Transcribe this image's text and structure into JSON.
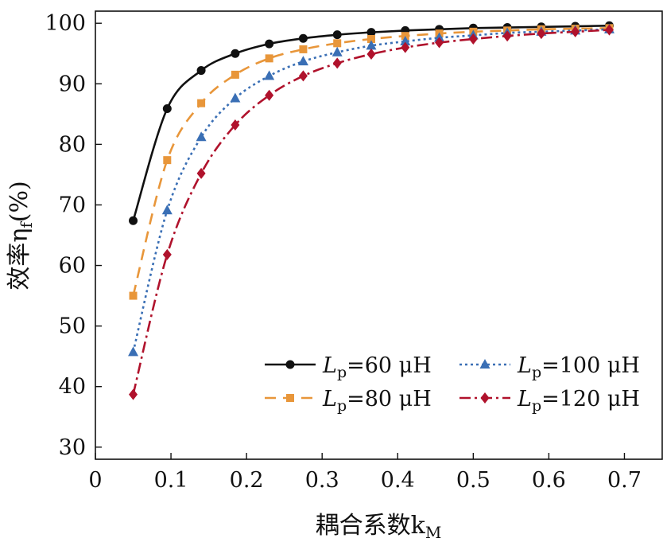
{
  "chart_data": {
    "type": "line",
    "xlabel": "耦合系数k",
    "xlabel_sub": "M",
    "ylabel": "效率η",
    "ylabel_sub": "f",
    "ylabel_suffix": "(%)",
    "xlim": [
      0,
      0.75
    ],
    "ylim": [
      28,
      102
    ],
    "xticks": [
      0,
      0.1,
      0.2,
      0.3,
      0.4,
      0.5,
      0.6,
      0.7
    ],
    "xtick_labels": [
      "0",
      "0.1",
      "0.2",
      "0.3",
      "0.4",
      "0.5",
      "0.6",
      "0.7"
    ],
    "yticks": [
      30,
      40,
      50,
      60,
      70,
      80,
      90,
      100
    ],
    "ytick_labels": [
      "30",
      "40",
      "50",
      "60",
      "70",
      "80",
      "90",
      "100"
    ],
    "grid": false,
    "legend_position": "bottom-right",
    "x": [
      0.05,
      0.095,
      0.14,
      0.185,
      0.23,
      0.275,
      0.32,
      0.365,
      0.41,
      0.455,
      0.5,
      0.545,
      0.59,
      0.635,
      0.68
    ],
    "series": [
      {
        "name_symbol": "L",
        "name_sub": "p",
        "name_rest": "=60 μH",
        "color": "#111111",
        "dash": "",
        "marker": "circle",
        "values": [
          67.4,
          85.9,
          92.2,
          95.0,
          96.6,
          97.5,
          98.1,
          98.5,
          98.8,
          99.0,
          99.2,
          99.3,
          99.4,
          99.5,
          99.6
        ]
      },
      {
        "name_symbol": "L",
        "name_sub": "p",
        "name_rest": "=80 μH",
        "color": "#e8963a",
        "dash": "14,9",
        "marker": "square",
        "values": [
          55.0,
          77.4,
          86.8,
          91.5,
          94.2,
          95.7,
          96.7,
          97.4,
          97.9,
          98.3,
          98.6,
          98.8,
          99.0,
          99.1,
          99.2
        ]
      },
      {
        "name_symbol": "L",
        "name_sub": "p",
        "name_rest": "=100 μH",
        "color": "#3a6fb5",
        "dash": "3,4",
        "marker": "triangle",
        "values": [
          45.7,
          69.1,
          81.2,
          87.6,
          91.3,
          93.7,
          95.2,
          96.3,
          97.0,
          97.6,
          98.0,
          98.4,
          98.6,
          98.8,
          99.0
        ]
      },
      {
        "name_symbol": "L",
        "name_sub": "p",
        "name_rest": "=120 μH",
        "color": "#b0122c",
        "dash": "14,5,3,5",
        "marker": "diamond",
        "values": [
          38.7,
          61.8,
          75.2,
          83.2,
          88.1,
          91.3,
          93.4,
          94.9,
          96.0,
          96.8,
          97.4,
          97.9,
          98.3,
          98.6,
          98.9
        ]
      }
    ]
  }
}
